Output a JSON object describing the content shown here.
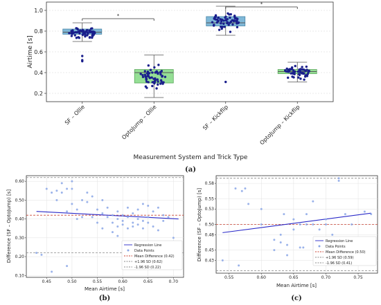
{
  "chart_data": [
    {
      "type": "boxplot",
      "panel_label": "(a)",
      "xlabel": "Measurement System and Trick Type",
      "ylabel": "Airtime [s]",
      "ylim": [
        0.12,
        1.08
      ],
      "yticks": [
        "0.2",
        "0.4",
        "0.6",
        "0.8",
        "1.0"
      ],
      "significance_marker": "*",
      "colors": {
        "sf": "#7fb8d8",
        "optojump": "#95df95",
        "points": "#1a1f8c"
      },
      "categories": [
        "SF – Ollie",
        "OptoJump – Ollie",
        "SF – Kickflip",
        "OptoJump – Kickflip"
      ],
      "boxes": [
        {
          "q1": 0.77,
          "median": 0.79,
          "q3": 0.82,
          "whisker_low": 0.7,
          "whisker_high": 0.88,
          "outliers": [
            0.56,
            0.52,
            0.51
          ]
        },
        {
          "q1": 0.3,
          "median": 0.4,
          "q3": 0.43,
          "whisker_low": 0.16,
          "whisker_high": 0.57,
          "outliers": []
        },
        {
          "q1": 0.85,
          "median": 0.88,
          "q3": 0.94,
          "whisker_low": 0.76,
          "whisker_high": 1.04,
          "outliers": [
            0.31
          ]
        },
        {
          "q1": 0.39,
          "median": 0.41,
          "q3": 0.43,
          "whisker_low": 0.31,
          "whisker_high": 0.5,
          "outliers": []
        }
      ]
    },
    {
      "type": "scatter",
      "panel_label": "(b)",
      "xlabel": "Mean Airtime [s]",
      "ylabel": "Difference (SF – OptoJump) [s]",
      "xlim": [
        0.41,
        0.72
      ],
      "ylim": [
        0.09,
        0.63
      ],
      "xticks": [
        "0.45",
        "0.50",
        "0.55",
        "0.60",
        "0.65",
        "0.70"
      ],
      "yticks": [
        "0.10",
        "0.20",
        "0.30",
        "0.40",
        "0.50",
        "0.60"
      ],
      "mean_difference": 0.42,
      "upper_loa": 0.62,
      "lower_loa": 0.22,
      "regression": {
        "x": [
          0.43,
          0.71
        ],
        "y": [
          0.44,
          0.4
        ]
      },
      "points": [
        [
          0.43,
          0.22
        ],
        [
          0.44,
          0.21
        ],
        [
          0.45,
          0.56
        ],
        [
          0.46,
          0.12
        ],
        [
          0.46,
          0.54
        ],
        [
          0.47,
          0.55
        ],
        [
          0.47,
          0.5
        ],
        [
          0.48,
          0.59
        ],
        [
          0.48,
          0.54
        ],
        [
          0.49,
          0.56
        ],
        [
          0.49,
          0.15
        ],
        [
          0.49,
          0.44
        ],
        [
          0.5,
          0.6
        ],
        [
          0.5,
          0.56
        ],
        [
          0.5,
          0.48
        ],
        [
          0.51,
          0.45
        ],
        [
          0.51,
          0.4
        ],
        [
          0.52,
          0.5
        ],
        [
          0.52,
          0.41
        ],
        [
          0.53,
          0.49
        ],
        [
          0.53,
          0.54
        ],
        [
          0.54,
          0.52
        ],
        [
          0.54,
          0.41
        ],
        [
          0.55,
          0.45
        ],
        [
          0.55,
          0.38
        ],
        [
          0.56,
          0.5
        ],
        [
          0.56,
          0.35
        ],
        [
          0.56,
          0.43
        ],
        [
          0.57,
          0.46
        ],
        [
          0.57,
          0.41
        ],
        [
          0.58,
          0.33
        ],
        [
          0.58,
          0.38
        ],
        [
          0.58,
          0.42
        ],
        [
          0.59,
          0.36
        ],
        [
          0.59,
          0.44
        ],
        [
          0.59,
          0.4
        ],
        [
          0.59,
          0.31
        ],
        [
          0.6,
          0.42
        ],
        [
          0.6,
          0.37
        ],
        [
          0.6,
          0.39
        ],
        [
          0.61,
          0.35
        ],
        [
          0.61,
          0.41
        ],
        [
          0.61,
          0.46
        ],
        [
          0.62,
          0.38
        ],
        [
          0.62,
          0.43
        ],
        [
          0.62,
          0.36
        ],
        [
          0.63,
          0.4
        ],
        [
          0.63,
          0.37
        ],
        [
          0.63,
          0.45
        ],
        [
          0.64,
          0.48
        ],
        [
          0.64,
          0.39
        ],
        [
          0.64,
          0.35
        ],
        [
          0.65,
          0.47
        ],
        [
          0.65,
          0.41
        ],
        [
          0.65,
          0.38
        ],
        [
          0.66,
          0.44
        ],
        [
          0.66,
          0.36
        ],
        [
          0.67,
          0.46
        ],
        [
          0.67,
          0.34
        ],
        [
          0.68,
          0.42
        ],
        [
          0.68,
          0.39
        ],
        [
          0.69,
          0.41
        ],
        [
          0.7,
          0.3
        ],
        [
          0.7,
          0.28
        ]
      ],
      "legend": [
        {
          "label": "Regression Line",
          "color": "#2828c8",
          "style": "solid"
        },
        {
          "label": "Data Points",
          "color": "#8aa6e6",
          "style": "marker"
        },
        {
          "label": "Mean Difference (0.42)",
          "color": "#c84030",
          "style": "dashed"
        },
        {
          "label": "+1.96 SD (0.62)",
          "color": "#888888",
          "style": "dashed"
        },
        {
          "label": "-1.96 SD (0.22)",
          "color": "#888888",
          "style": "dashed"
        }
      ]
    },
    {
      "type": "scatter",
      "panel_label": "(c)",
      "xlabel": "Mean Airtime [s]",
      "ylabel": "Difference (SF – OptoJump) [s]",
      "xlim": [
        0.53,
        0.78
      ],
      "ylim": [
        0.405,
        0.595
      ],
      "xticks": [
        "0.55",
        "0.60",
        "0.65",
        "0.70",
        "0.75"
      ],
      "yticks": [
        "0.43",
        "0.45",
        "0.48",
        "0.50",
        "0.53",
        "0.55",
        "0.58"
      ],
      "mean_difference": 0.5,
      "upper_loa": 0.59,
      "lower_loa": 0.41,
      "regression": {
        "x": [
          0.54,
          0.77
        ],
        "y": [
          0.484,
          0.522
        ]
      },
      "points": [
        [
          0.54,
          0.43
        ],
        [
          0.56,
          0.57
        ],
        [
          0.565,
          0.42
        ],
        [
          0.57,
          0.565
        ],
        [
          0.575,
          0.57
        ],
        [
          0.58,
          0.54
        ],
        [
          0.6,
          0.5
        ],
        [
          0.6,
          0.53
        ],
        [
          0.62,
          0.47
        ],
        [
          0.62,
          0.45
        ],
        [
          0.63,
          0.465
        ],
        [
          0.63,
          0.48
        ],
        [
          0.635,
          0.52
        ],
        [
          0.64,
          0.44
        ],
        [
          0.64,
          0.46
        ],
        [
          0.65,
          0.49
        ],
        [
          0.65,
          0.51
        ],
        [
          0.66,
          0.455
        ],
        [
          0.66,
          0.5
        ],
        [
          0.665,
          0.455
        ],
        [
          0.67,
          0.5
        ],
        [
          0.67,
          0.52
        ],
        [
          0.68,
          0.545
        ],
        [
          0.68,
          0.5
        ],
        [
          0.69,
          0.49
        ],
        [
          0.7,
          0.5
        ],
        [
          0.7,
          0.51
        ],
        [
          0.71,
          0.48
        ],
        [
          0.72,
          0.59
        ],
        [
          0.72,
          0.585
        ],
        [
          0.73,
          0.52
        ],
        [
          0.74,
          0.5
        ],
        [
          0.76,
          0.525
        ],
        [
          0.77,
          0.52
        ]
      ],
      "legend": [
        {
          "label": "Regression Line",
          "color": "#2828c8",
          "style": "solid"
        },
        {
          "label": "Data Points",
          "color": "#8aa6e6",
          "style": "marker"
        },
        {
          "label": "Mean Difference (0.50)",
          "color": "#c84030",
          "style": "dashed"
        },
        {
          "label": "+1.96 SD (0.59)",
          "color": "#888888",
          "style": "dashed"
        },
        {
          "label": "-1.96 SD (0.41)",
          "color": "#888888",
          "style": "dashed"
        }
      ]
    }
  ]
}
